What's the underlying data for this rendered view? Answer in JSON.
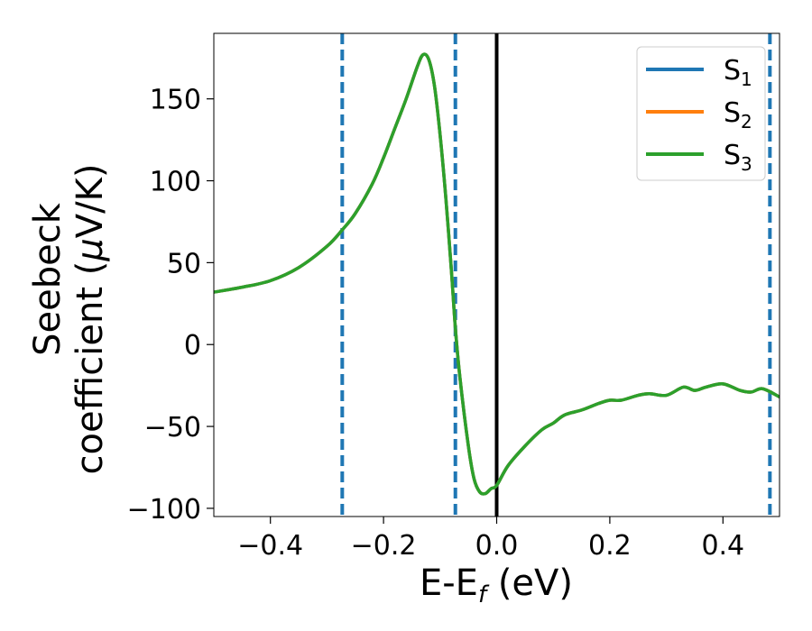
{
  "chart_data": {
    "type": "line",
    "xlabel_main": "E-E",
    "xlabel_sub": "f",
    "xlabel_tail": " (eV)",
    "ylabel_line1": "Seebeck",
    "ylabel_line2": "coefficient  (",
    "ylabel_mu": "μ",
    "ylabel_unit": "V/K)",
    "xlim": [
      -0.5,
      0.5
    ],
    "ylim": [
      -105,
      190
    ],
    "xticks": [
      -0.4,
      -0.2,
      0.0,
      0.2,
      0.4
    ],
    "xtick_labels": [
      "−0.4",
      "−0.2",
      "0.0",
      "0.2",
      "0.4"
    ],
    "yticks": [
      -100,
      -50,
      0,
      50,
      100,
      150
    ],
    "ytick_labels": [
      "−100",
      "−50",
      "0",
      "50",
      "100",
      "150"
    ],
    "grid": false,
    "legend_position": "top-right",
    "vlines": [
      {
        "x": 0.0,
        "style": "solid",
        "color": "#000000"
      },
      {
        "x": -0.273,
        "style": "dashed",
        "color": "#1f77b4"
      },
      {
        "x": -0.073,
        "style": "dashed",
        "color": "#1f77b4"
      },
      {
        "x": 0.483,
        "style": "dashed",
        "color": "#1f77b4"
      }
    ],
    "x": [
      -0.5,
      -0.45,
      -0.4,
      -0.35,
      -0.3,
      -0.273,
      -0.25,
      -0.22,
      -0.2,
      -0.18,
      -0.16,
      -0.14,
      -0.13,
      -0.12,
      -0.11,
      -0.1,
      -0.09,
      -0.08,
      -0.073,
      -0.065,
      -0.05,
      -0.04,
      -0.03,
      -0.02,
      -0.01,
      0.0,
      0.02,
      0.05,
      0.08,
      0.1,
      0.12,
      0.15,
      0.18,
      0.2,
      0.22,
      0.25,
      0.27,
      0.3,
      0.33,
      0.35,
      0.37,
      0.4,
      0.43,
      0.45,
      0.47,
      0.5
    ],
    "series": [
      {
        "name_main": "S",
        "name_sub": "1",
        "color": "#1f77b4",
        "values": [
          32,
          35,
          39,
          47,
          60,
          70,
          80,
          98,
          114,
          132,
          150,
          170,
          177,
          174,
          158,
          128,
          90,
          45,
          10,
          -20,
          -62,
          -82,
          -90,
          -91,
          -88,
          -86,
          -74,
          -62,
          -52,
          -48,
          -43,
          -40,
          -36,
          -34,
          -34,
          -31,
          -30,
          -31,
          -26,
          -28,
          -26,
          -24,
          -28,
          -29,
          -27,
          -32
        ]
      },
      {
        "name_main": "S",
        "name_sub": "2",
        "color": "#ff7f0e",
        "values": [
          32,
          35,
          39,
          47,
          60,
          70,
          80,
          98,
          114,
          132,
          150,
          170,
          177,
          174,
          158,
          128,
          90,
          45,
          10,
          -20,
          -62,
          -82,
          -90,
          -91,
          -88,
          -86,
          -74,
          -62,
          -52,
          -48,
          -43,
          -40,
          -36,
          -34,
          -34,
          -31,
          -30,
          -31,
          -26,
          -28,
          -26,
          -24,
          -28,
          -29,
          -27,
          -32
        ]
      },
      {
        "name_main": "S",
        "name_sub": "3",
        "color": "#2ca02c",
        "values": [
          32,
          35,
          39,
          47,
          60,
          70,
          80,
          98,
          114,
          132,
          150,
          170,
          177,
          174,
          158,
          128,
          90,
          45,
          10,
          -20,
          -62,
          -82,
          -90,
          -91,
          -88,
          -86,
          -74,
          -62,
          -52,
          -48,
          -43,
          -40,
          -36,
          -34,
          -34,
          -31,
          -30,
          -31,
          -26,
          -28,
          -26,
          -24,
          -28,
          -29,
          -27,
          -32
        ]
      }
    ]
  }
}
